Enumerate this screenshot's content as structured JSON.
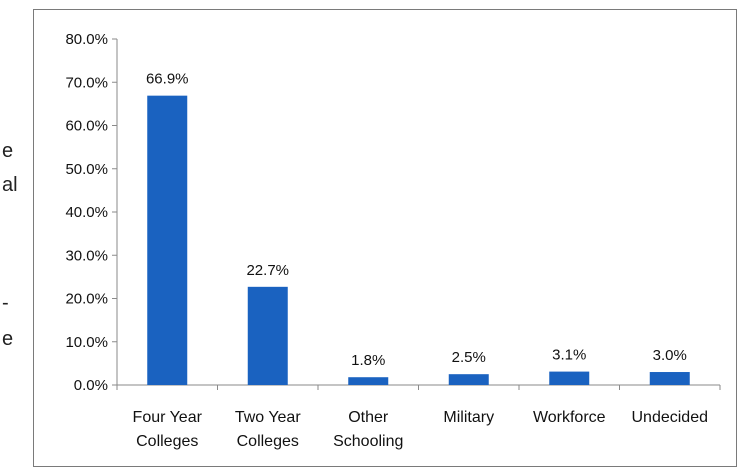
{
  "margin_text": [
    {
      "text": "e"
    },
    {
      "text": "al"
    },
    {
      "text": "-"
    },
    {
      "text": "e"
    }
  ],
  "chart_data": {
    "type": "bar",
    "categories": [
      [
        "Four Year",
        "Colleges"
      ],
      [
        "Two Year",
        "Colleges"
      ],
      [
        "Other",
        "Schooling"
      ],
      [
        "Military"
      ],
      [
        "Workforce"
      ],
      [
        "Undecided"
      ]
    ],
    "values": [
      66.9,
      22.7,
      1.8,
      2.5,
      3.1,
      3.0
    ],
    "data_labels": [
      "66.9%",
      "22.7%",
      "1.8%",
      "2.5%",
      "3.1%",
      "3.0%"
    ],
    "y_ticks": [
      "0.0%",
      "10.0%",
      "20.0%",
      "30.0%",
      "40.0%",
      "50.0%",
      "60.0%",
      "70.0%",
      "80.0%"
    ],
    "ylim": [
      0,
      80
    ],
    "title": "",
    "xlabel": "",
    "ylabel": "",
    "grid": false,
    "legend": "none",
    "bar_color": "#1a62c0"
  }
}
